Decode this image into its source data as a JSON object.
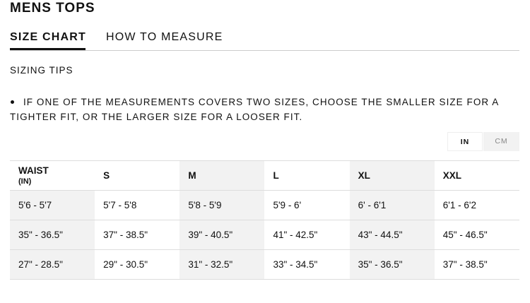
{
  "header": {
    "title": "MENS TOPS"
  },
  "tabs": [
    "SIZE CHART",
    "HOW TO MEASURE"
  ],
  "tips": {
    "heading": "SIZING TIPS",
    "items": [
      "IF ONE OF THE MEASUREMENTS COVERS TWO SIZES, CHOOSE THE SMALLER SIZE FOR A TIGHTER FIT, OR THE LARGER SIZE FOR A LOOSER FIT."
    ]
  },
  "units": [
    "IN",
    "CM"
  ],
  "table": {
    "header": [
      [
        "WAIST",
        "(IN)"
      ],
      "S",
      "M",
      "L",
      "XL",
      "XXL"
    ],
    "rows": [
      [
        "5'6 - 5'7",
        "5'7 - 5'8",
        "5'8 - 5'9",
        "5'9 - 6'",
        "6' - 6'1",
        "6'1 - 6'2"
      ],
      [
        "35\" - 36.5\"",
        "37\" - 38.5\"",
        "39\" - 40.5\"",
        "41\" - 42.5\"",
        "43\" - 44.5\"",
        "45\" - 46.5\""
      ],
      [
        "27\" - 28.5\"",
        "29\" - 30.5\"",
        "31\" - 32.5\"",
        "33\" - 34.5\"",
        "35\" - 36.5\"",
        "37\" - 38.5\""
      ]
    ]
  }
}
